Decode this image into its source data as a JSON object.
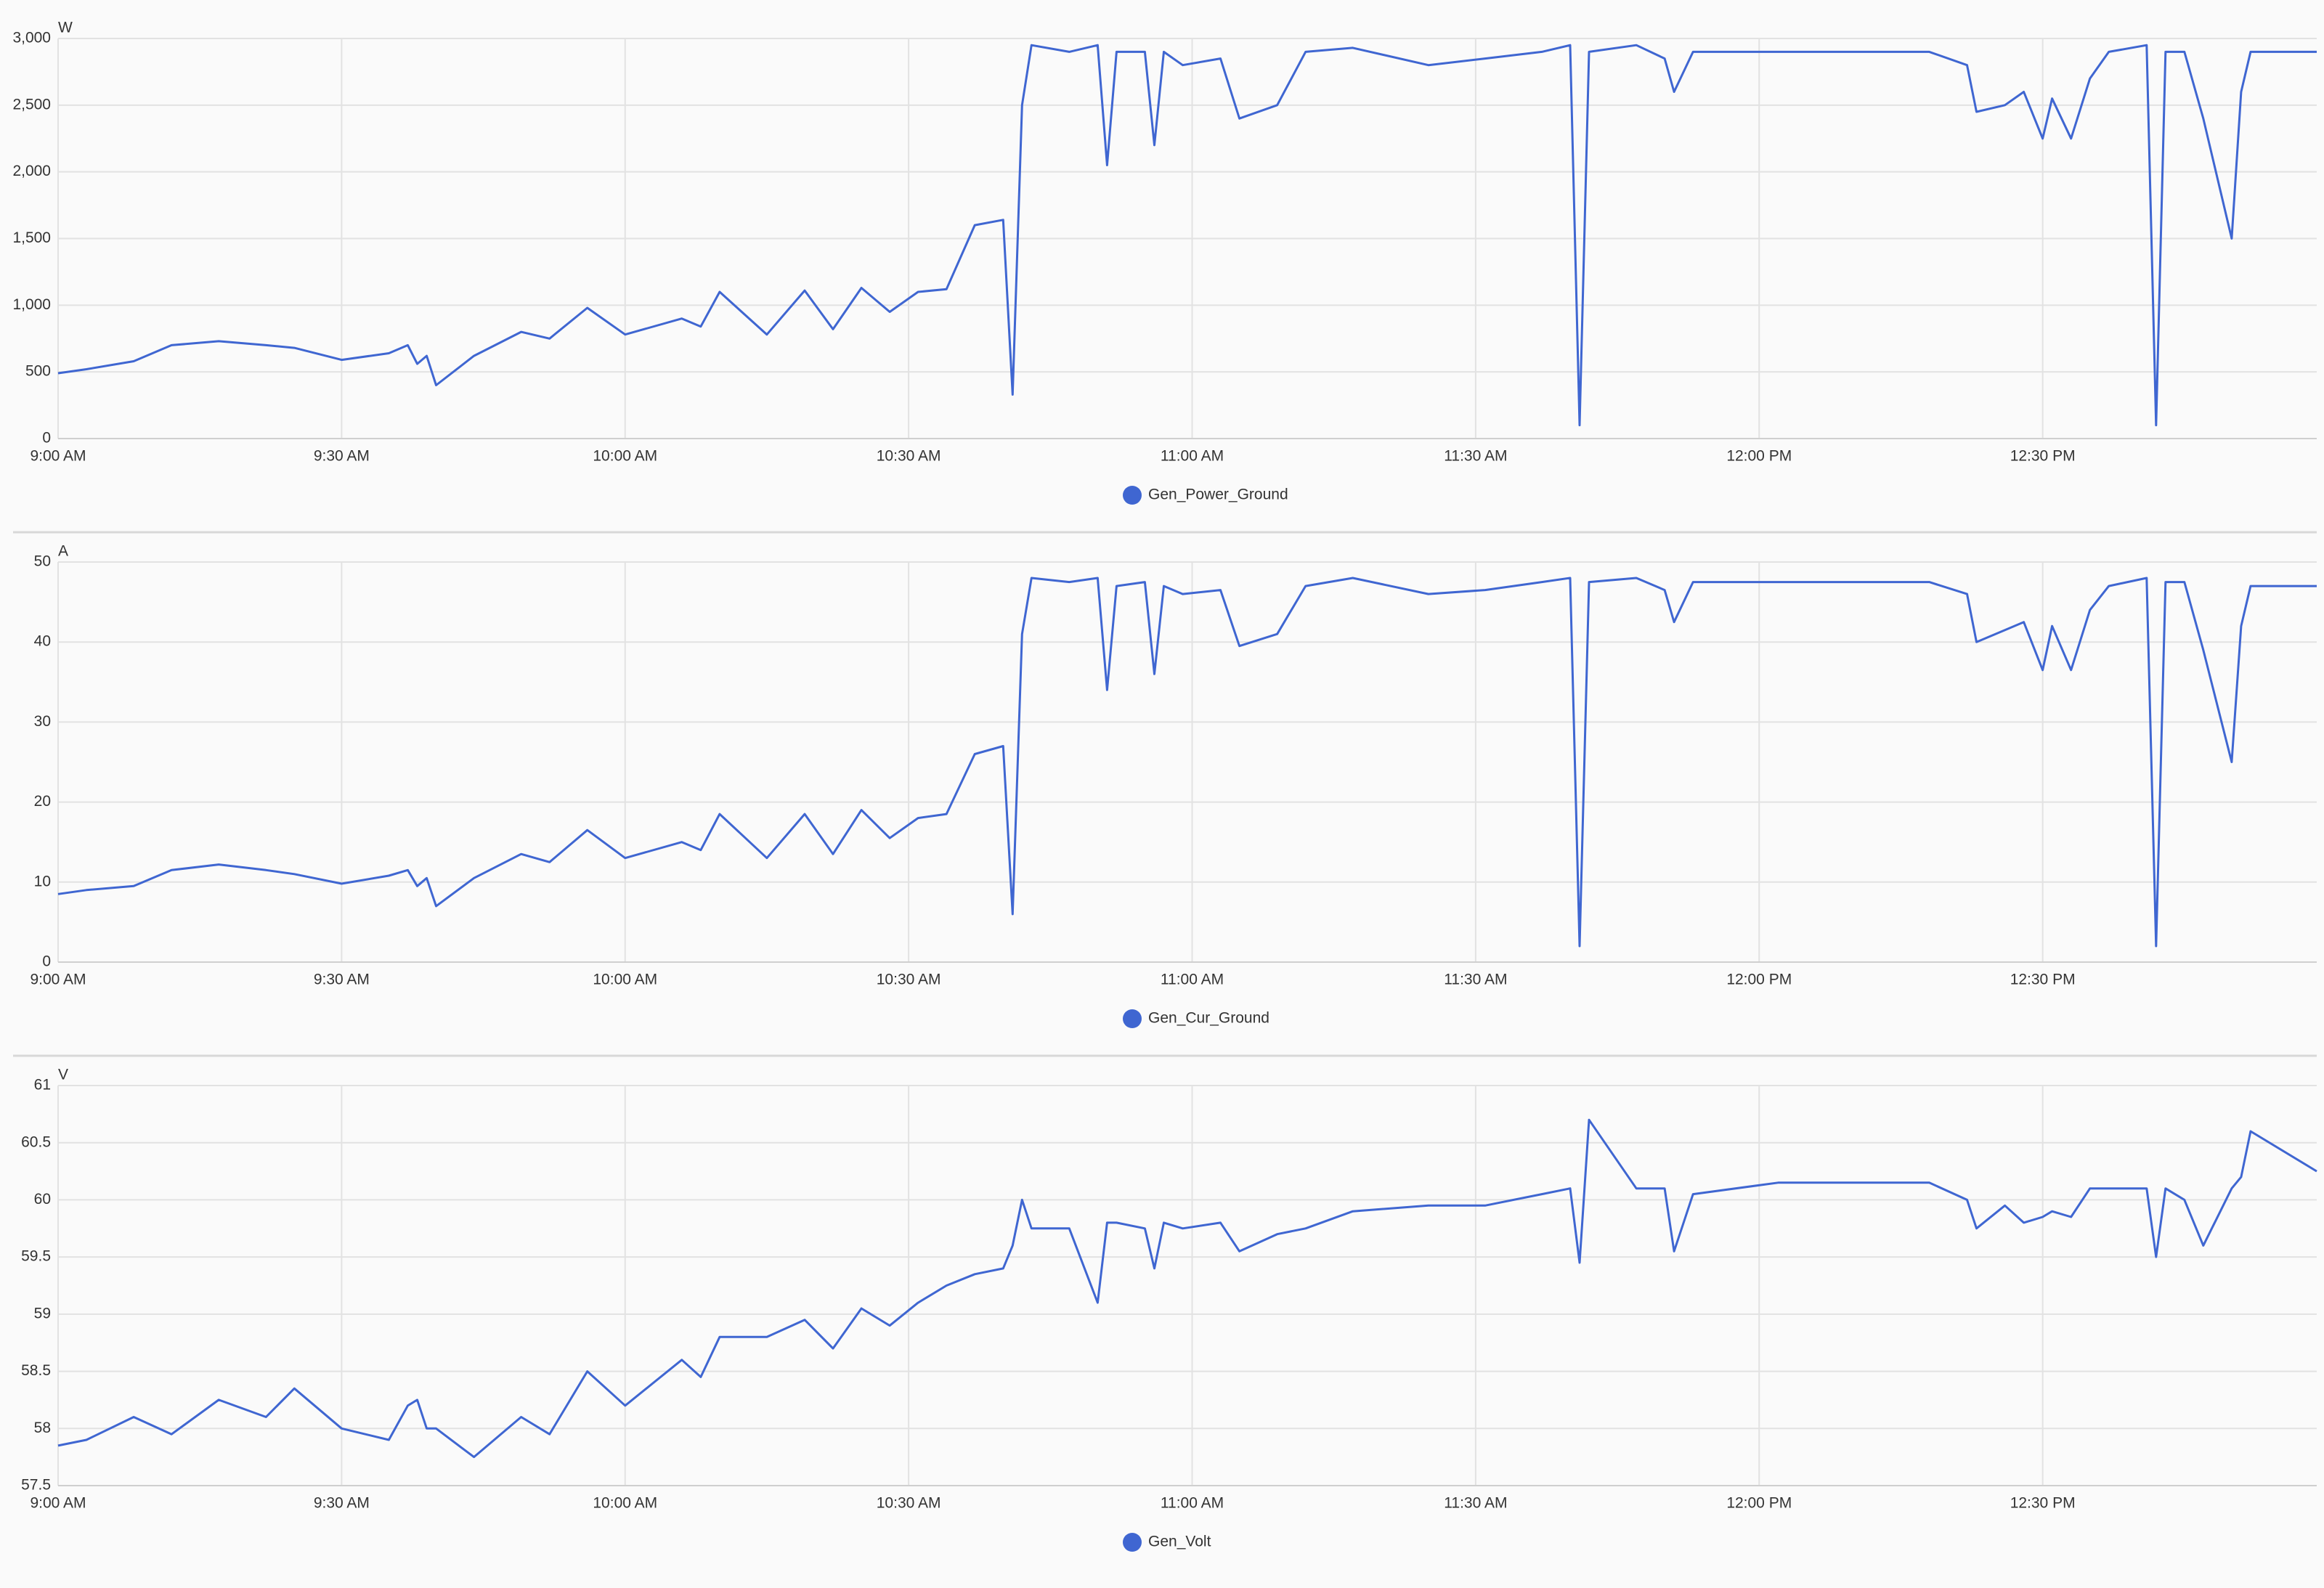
{
  "chart_data": [
    {
      "type": "line",
      "y_label": "W",
      "x": [
        "09:00",
        "09:03",
        "09:08",
        "09:12",
        "09:17",
        "09:22",
        "09:25",
        "09:30",
        "09:35",
        "09:37",
        "09:38",
        "09:39",
        "09:40",
        "09:44",
        "09:49",
        "09:52",
        "09:56",
        "10:00",
        "10:06",
        "10:08",
        "10:10",
        "10:15",
        "10:19",
        "10:22",
        "10:25",
        "10:28",
        "10:31",
        "10:34",
        "10:37",
        "10:40",
        "10:41",
        "10:42",
        "10:43",
        "10:47",
        "10:50",
        "10:51",
        "10:52",
        "10:55",
        "10:56",
        "10:57",
        "10:59",
        "11:03",
        "11:05",
        "11:09",
        "11:12",
        "11:17",
        "11:25",
        "11:31",
        "11:37",
        "11:40",
        "11:41",
        "11:42",
        "11:47",
        "11:50",
        "11:51",
        "11:53",
        "12:02",
        "12:18",
        "12:22",
        "12:23",
        "12:26",
        "12:28",
        "12:30",
        "12:31",
        "12:33",
        "12:35",
        "12:37",
        "12:41",
        "12:42",
        "12:43",
        "12:45",
        "12:47",
        "12:50",
        "12:51",
        "12:52",
        "12:59"
      ],
      "series": [
        {
          "name": "Gen_Power_Ground",
          "color": "#3f66d1",
          "values": [
            490,
            520,
            580,
            700,
            730,
            700,
            680,
            590,
            640,
            700,
            560,
            620,
            400,
            620,
            800,
            750,
            980,
            780,
            900,
            840,
            1100,
            780,
            1110,
            820,
            1130,
            950,
            1100,
            1120,
            1600,
            1640,
            330,
            2500,
            2950,
            2900,
            2950,
            2050,
            2900,
            2900,
            2200,
            2900,
            2800,
            2850,
            2400,
            2500,
            2900,
            2930,
            2800,
            2850,
            2900,
            2950,
            100,
            2900,
            2950,
            2850,
            2600,
            2900,
            2900,
            2900,
            2800,
            2450,
            2500,
            2600,
            2250,
            2550,
            2250,
            2700,
            2900,
            2950,
            100,
            2900,
            2900,
            2400,
            1500,
            2600,
            2900,
            2900
          ]
        }
      ],
      "xlim": [
        "09:00",
        "12:59"
      ],
      "xticks": [
        {
          "value": "09:00",
          "label": "9:00 AM"
        },
        {
          "value": "09:30",
          "label": "9:30 AM"
        },
        {
          "value": "10:00",
          "label": "10:00 AM"
        },
        {
          "value": "10:30",
          "label": "10:30 AM"
        },
        {
          "value": "11:00",
          "label": "11:00 AM"
        },
        {
          "value": "11:30",
          "label": "11:30 AM"
        },
        {
          "value": "12:00",
          "label": "12:00 PM"
        },
        {
          "value": "12:30",
          "label": "12:30 PM"
        }
      ],
      "ylim": [
        0,
        3000
      ],
      "yticks": [
        0,
        500,
        {
          "value": 1000,
          "label": "1,000"
        },
        {
          "value": 1500,
          "label": "1,500"
        },
        {
          "value": 2000,
          "label": "2,000"
        },
        {
          "value": 2500,
          "label": "2,500"
        },
        {
          "value": 3000,
          "label": "3,000"
        }
      ],
      "grid": true,
      "legend": "bottom"
    },
    {
      "type": "line",
      "y_label": "A",
      "x": [
        "09:00",
        "09:03",
        "09:08",
        "09:12",
        "09:17",
        "09:22",
        "09:25",
        "09:30",
        "09:35",
        "09:37",
        "09:38",
        "09:39",
        "09:40",
        "09:44",
        "09:49",
        "09:52",
        "09:56",
        "10:00",
        "10:06",
        "10:08",
        "10:10",
        "10:15",
        "10:19",
        "10:22",
        "10:25",
        "10:28",
        "10:31",
        "10:34",
        "10:37",
        "10:40",
        "10:41",
        "10:42",
        "10:43",
        "10:47",
        "10:50",
        "10:51",
        "10:52",
        "10:55",
        "10:56",
        "10:57",
        "10:59",
        "11:03",
        "11:05",
        "11:09",
        "11:12",
        "11:17",
        "11:25",
        "11:31",
        "11:37",
        "11:40",
        "11:41",
        "11:42",
        "11:47",
        "11:50",
        "11:51",
        "11:53",
        "12:02",
        "12:18",
        "12:22",
        "12:23",
        "12:26",
        "12:28",
        "12:30",
        "12:31",
        "12:33",
        "12:35",
        "12:37",
        "12:41",
        "12:42",
        "12:43",
        "12:45",
        "12:47",
        "12:50",
        "12:51",
        "12:52",
        "12:59"
      ],
      "series": [
        {
          "name": "Gen_Cur_Ground",
          "color": "#3f66d1",
          "values": [
            8.5,
            9,
            9.5,
            11.5,
            12.2,
            11.5,
            11,
            9.8,
            10.8,
            11.5,
            9.5,
            10.5,
            7,
            10.5,
            13.5,
            12.5,
            16.5,
            13,
            15,
            14,
            18.5,
            13,
            18.5,
            13.5,
            19,
            15.5,
            18,
            18.5,
            26,
            27,
            6,
            41,
            48,
            47.5,
            48,
            34,
            47,
            47.5,
            36,
            47,
            46,
            46.5,
            39.5,
            41,
            47,
            48,
            46,
            46.5,
            47.5,
            48,
            2,
            47.5,
            48,
            46.5,
            42.5,
            47.5,
            47.5,
            47.5,
            46,
            40,
            41.5,
            42.5,
            36.5,
            42,
            36.5,
            44,
            47,
            48,
            2,
            47.5,
            47.5,
            39,
            25,
            42,
            47,
            47
          ]
        }
      ],
      "xlim": [
        "09:00",
        "12:59"
      ],
      "xticks": [
        {
          "value": "09:00",
          "label": "9:00 AM"
        },
        {
          "value": "09:30",
          "label": "9:30 AM"
        },
        {
          "value": "10:00",
          "label": "10:00 AM"
        },
        {
          "value": "10:30",
          "label": "10:30 AM"
        },
        {
          "value": "11:00",
          "label": "11:00 AM"
        },
        {
          "value": "11:30",
          "label": "11:30 AM"
        },
        {
          "value": "12:00",
          "label": "12:00 PM"
        },
        {
          "value": "12:30",
          "label": "12:30 PM"
        }
      ],
      "ylim": [
        0,
        50
      ],
      "yticks": [
        0,
        10,
        20,
        30,
        40,
        50
      ],
      "grid": true,
      "legend": "bottom"
    },
    {
      "type": "line",
      "y_label": "V",
      "x": [
        "09:00",
        "09:03",
        "09:08",
        "09:12",
        "09:17",
        "09:22",
        "09:25",
        "09:30",
        "09:35",
        "09:37",
        "09:38",
        "09:39",
        "09:40",
        "09:44",
        "09:49",
        "09:52",
        "09:56",
        "10:00",
        "10:06",
        "10:08",
        "10:10",
        "10:15",
        "10:19",
        "10:22",
        "10:25",
        "10:28",
        "10:31",
        "10:34",
        "10:37",
        "10:40",
        "10:41",
        "10:42",
        "10:43",
        "10:47",
        "10:50",
        "10:51",
        "10:52",
        "10:55",
        "10:56",
        "10:57",
        "10:59",
        "11:03",
        "11:05",
        "11:09",
        "11:12",
        "11:17",
        "11:25",
        "11:31",
        "11:37",
        "11:40",
        "11:41",
        "11:42",
        "11:47",
        "11:50",
        "11:51",
        "11:53",
        "12:02",
        "12:18",
        "12:22",
        "12:23",
        "12:26",
        "12:28",
        "12:30",
        "12:31",
        "12:33",
        "12:35",
        "12:37",
        "12:41",
        "12:42",
        "12:43",
        "12:45",
        "12:47",
        "12:50",
        "12:51",
        "12:52",
        "12:59"
      ],
      "series": [
        {
          "name": "Gen_Volt",
          "color": "#3f66d1",
          "values": [
            57.85,
            57.9,
            58.1,
            57.95,
            58.25,
            58.1,
            58.35,
            58.0,
            57.9,
            58.2,
            58.25,
            58.0,
            58.0,
            57.75,
            58.1,
            57.95,
            58.5,
            58.2,
            58.6,
            58.45,
            58.8,
            58.8,
            58.95,
            58.7,
            59.05,
            58.9,
            59.1,
            59.25,
            59.35,
            59.4,
            59.6,
            60.0,
            59.75,
            59.75,
            59.1,
            59.8,
            59.8,
            59.75,
            59.4,
            59.8,
            59.75,
            59.8,
            59.55,
            59.7,
            59.75,
            59.9,
            59.95,
            59.95,
            60.05,
            60.1,
            59.45,
            60.7,
            60.1,
            60.1,
            59.55,
            60.05,
            60.15,
            60.15,
            60.0,
            59.75,
            59.95,
            59.8,
            59.85,
            59.9,
            59.85,
            60.1,
            60.1,
            60.1,
            59.5,
            60.1,
            60.0,
            59.6,
            60.1,
            60.2,
            60.6,
            60.25
          ]
        }
      ],
      "xlim": [
        "09:00",
        "12:59"
      ],
      "xticks": [
        {
          "value": "09:00",
          "label": "9:00 AM"
        },
        {
          "value": "09:30",
          "label": "9:30 AM"
        },
        {
          "value": "10:00",
          "label": "10:00 AM"
        },
        {
          "value": "10:30",
          "label": "10:30 AM"
        },
        {
          "value": "11:00",
          "label": "11:00 AM"
        },
        {
          "value": "11:30",
          "label": "11:30 AM"
        },
        {
          "value": "12:00",
          "label": "12:00 PM"
        },
        {
          "value": "12:30",
          "label": "12:30 PM"
        }
      ],
      "ylim": [
        57.5,
        61
      ],
      "yticks": [
        57.5,
        58,
        58.5,
        59,
        59.5,
        60,
        60.5,
        61
      ],
      "grid": true,
      "legend": "bottom"
    }
  ]
}
